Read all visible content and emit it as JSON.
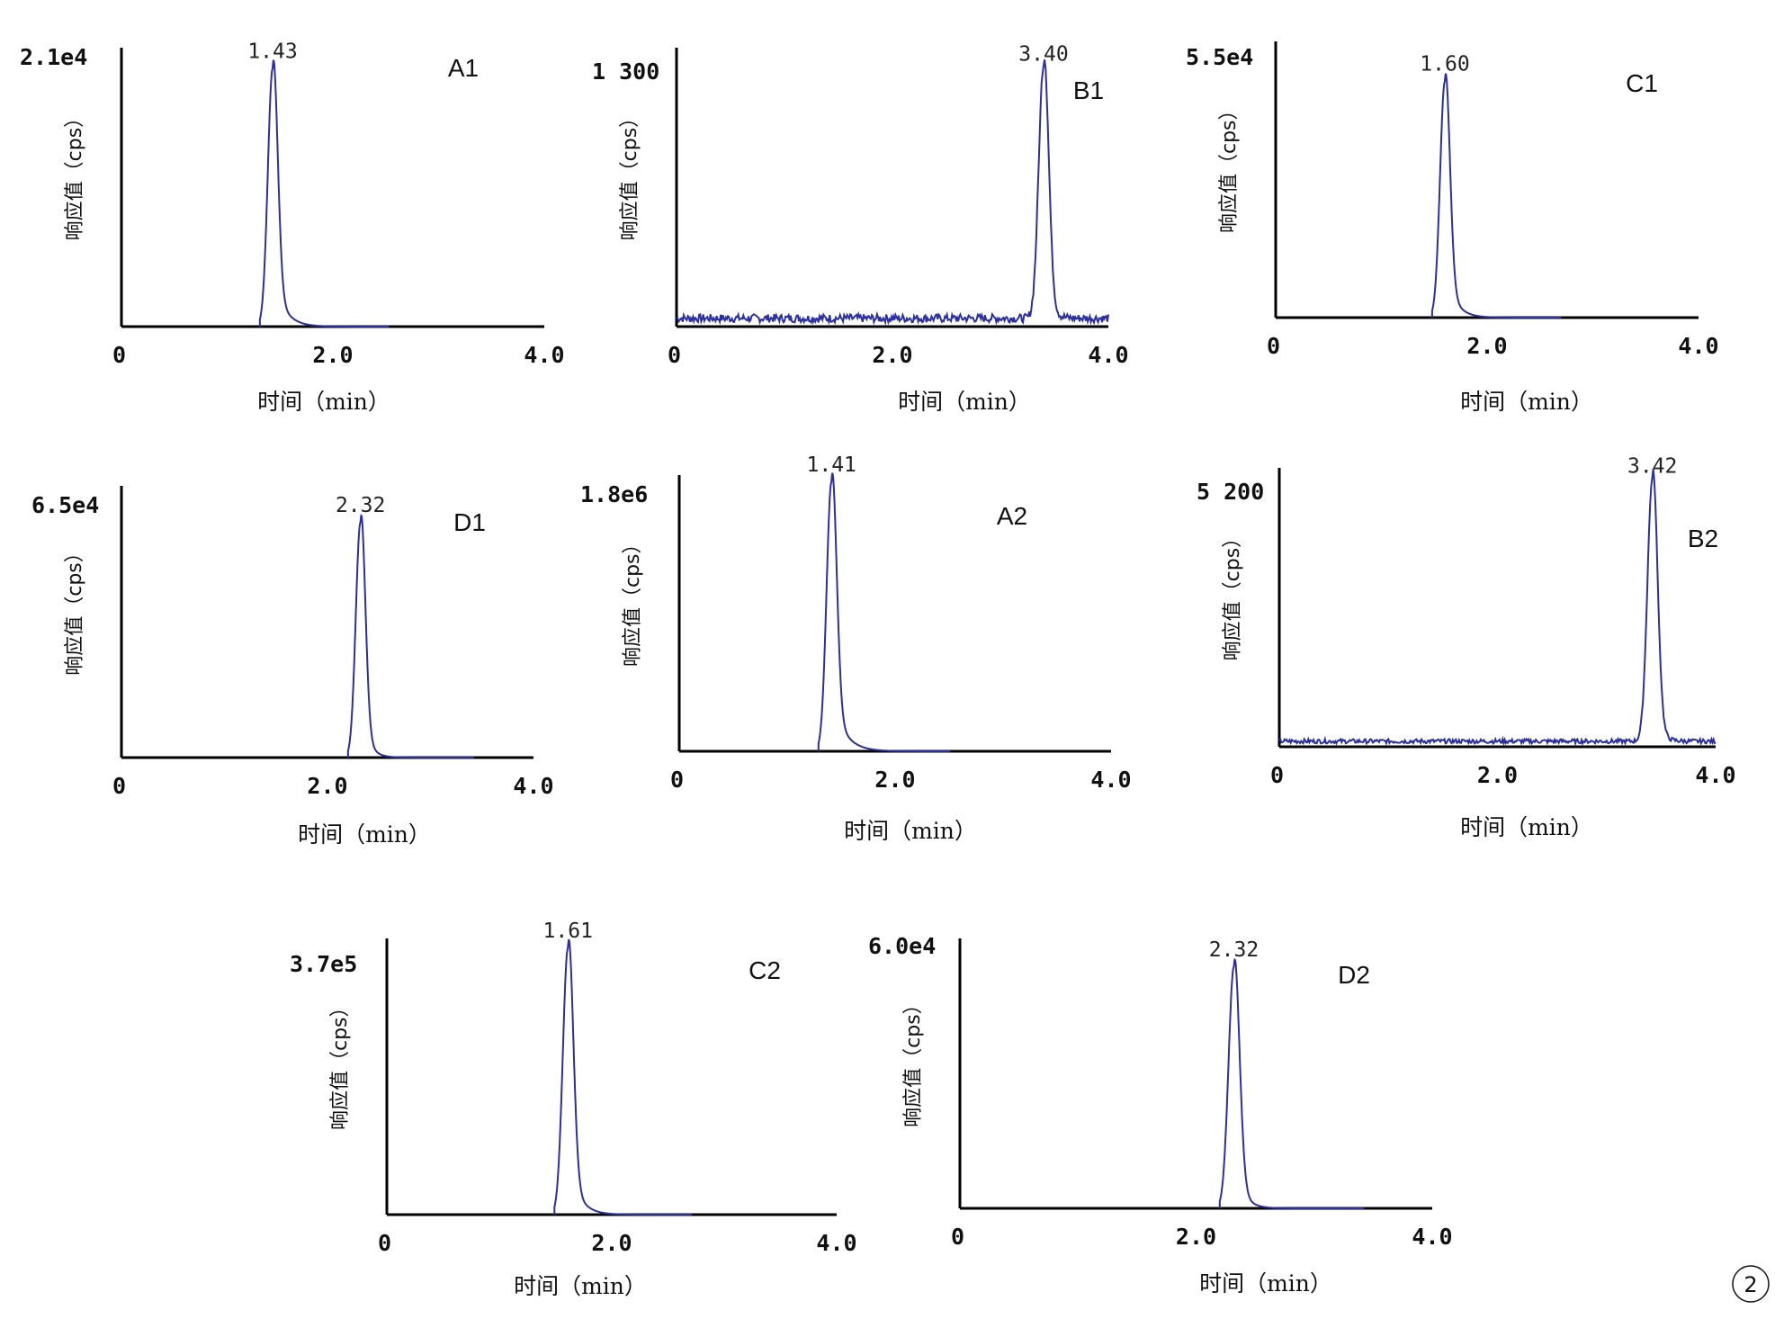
{
  "figure_badge": "②",
  "chart_data": [
    {
      "type": "line",
      "panel": "A1",
      "ymax_label": "2.1e4",
      "xlabel": "时间（min）",
      "ylabel": "响应值（cps）",
      "xticks": [
        "0",
        "2.0",
        "4.0"
      ],
      "xlim": [
        0,
        4.0
      ],
      "peak_time": 1.43,
      "peak_label": "1.43",
      "peak_height": 0.93,
      "baseline": 0.0,
      "noise": 0.0,
      "tail": 0.1
    },
    {
      "type": "line",
      "panel": "B1",
      "ymax_label": "1 300",
      "xlabel": "时间（min）",
      "ylabel": "响应值（cps）",
      "xticks": [
        "0",
        "2.0",
        "4.0"
      ],
      "xlim": [
        0,
        4.0
      ],
      "peak_time": 3.4,
      "peak_label": "3.40",
      "peak_height": 0.92,
      "baseline": 0.03,
      "noise": 0.015,
      "tail": 0.05
    },
    {
      "type": "line",
      "panel": "C1",
      "ymax_label": "5.5e4",
      "xlabel": "时间（min）",
      "ylabel": "响应值（cps）",
      "xticks": [
        "0",
        "2.0",
        "4.0"
      ],
      "xlim": [
        0,
        4.0
      ],
      "peak_time": 1.6,
      "peak_label": "1.60",
      "peak_height": 0.86,
      "baseline": 0.0,
      "noise": 0.0,
      "tail": 0.09
    },
    {
      "type": "line",
      "panel": "D1",
      "ymax_label": "6.5e4",
      "xlabel": "时间（min）",
      "ylabel": "响应值（cps）",
      "xticks": [
        "0",
        "2.0",
        "4.0"
      ],
      "xlim": [
        0,
        4.0
      ],
      "peak_time": 2.32,
      "peak_label": "2.32",
      "peak_height": 0.87,
      "baseline": 0.0,
      "noise": 0.0,
      "tail": 0.07
    },
    {
      "type": "line",
      "panel": "A2",
      "ymax_label": "1.8e6",
      "xlabel": "时间（min）",
      "ylabel": "响应值（cps）",
      "xticks": [
        "0",
        "2.0",
        "4.0"
      ],
      "xlim": [
        0,
        4.0
      ],
      "peak_time": 1.41,
      "peak_label": "1.41",
      "peak_height": 0.98,
      "baseline": 0.0,
      "noise": 0.0,
      "tail": 0.11
    },
    {
      "type": "line",
      "panel": "B2",
      "ymax_label": "5 200",
      "xlabel": "时间（min）",
      "ylabel": "响应值（cps）",
      "xticks": [
        "0",
        "2.0",
        "4.0"
      ],
      "xlim": [
        0,
        4.0
      ],
      "peak_time": 3.42,
      "peak_label": "3.42",
      "peak_height": 0.95,
      "baseline": 0.02,
      "noise": 0.008,
      "tail": 0.05
    },
    {
      "type": "line",
      "panel": "C2",
      "ymax_label": "3.7e5",
      "xlabel": "时间（min）",
      "ylabel": "响应值（cps）",
      "xticks": [
        "0",
        "2.0",
        "4.0"
      ],
      "xlim": [
        0,
        4.0
      ],
      "peak_time": 1.61,
      "peak_label": "1.61",
      "peak_height": 0.97,
      "baseline": 0.0,
      "noise": 0.0,
      "tail": 0.09
    },
    {
      "type": "line",
      "panel": "D2",
      "ymax_label": "6.0e4",
      "xlabel": "时间（min）",
      "ylabel": "响应值（cps）",
      "xticks": [
        "0",
        "2.0",
        "4.0"
      ],
      "xlim": [
        0,
        4.0
      ],
      "peak_time": 2.32,
      "peak_label": "2.32",
      "peak_height": 0.9,
      "baseline": 0.0,
      "noise": 0.0,
      "tail": 0.07
    }
  ]
}
